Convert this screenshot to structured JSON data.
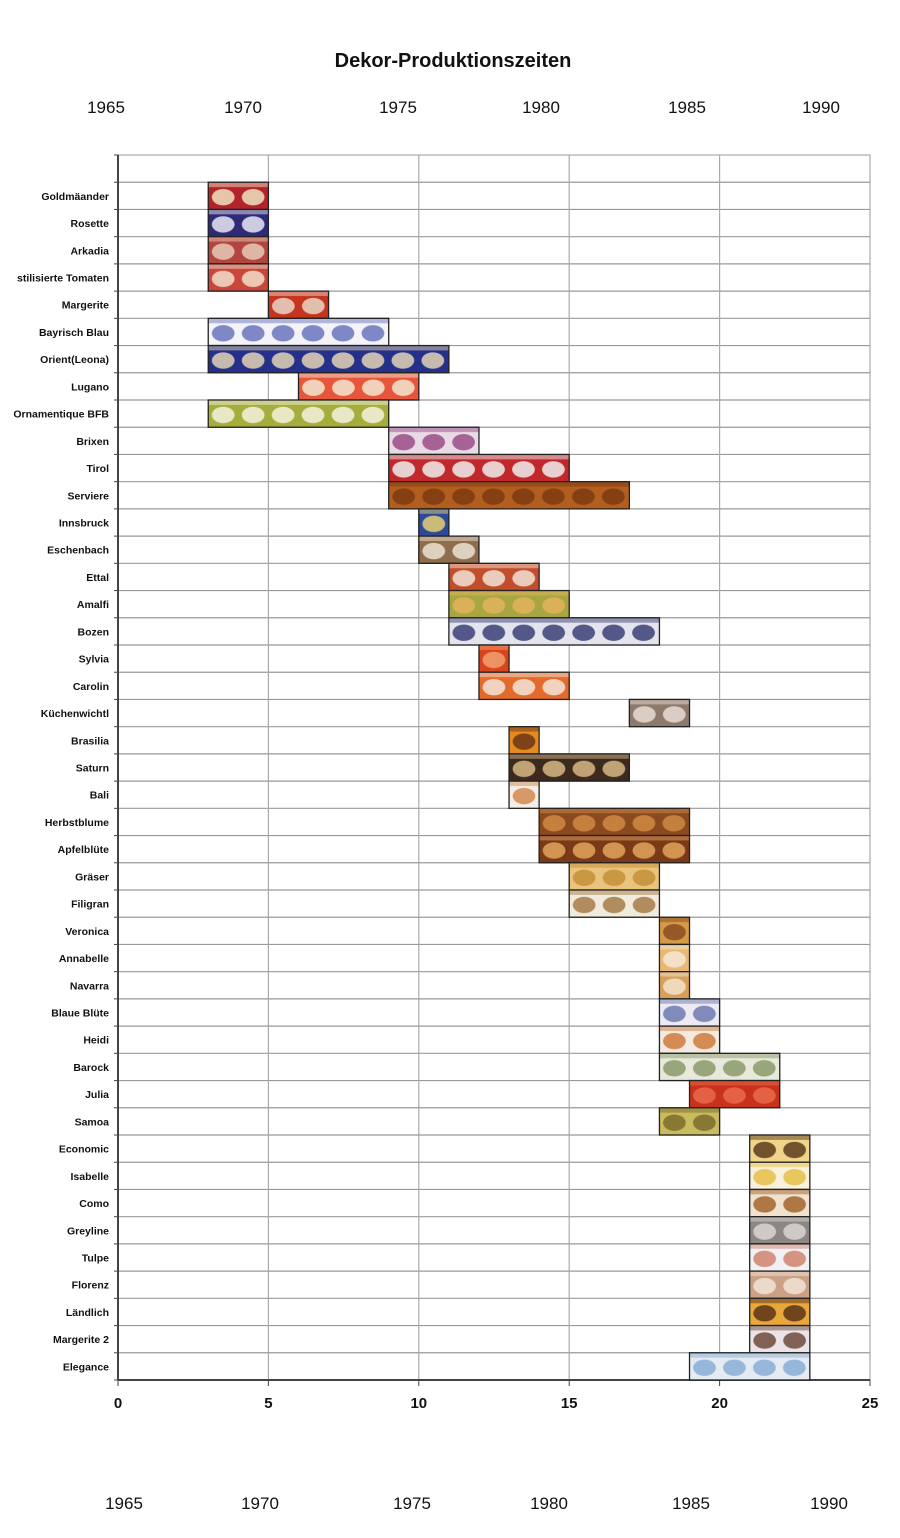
{
  "chart_data": {
    "type": "gantt",
    "title": "Dekor-Produktionszeiten",
    "top_year_labels": [
      "1965",
      "1970",
      "1975",
      "1980",
      "1985",
      "1990"
    ],
    "bottom_year_labels": [
      "1965",
      "1970",
      "1975",
      "1980",
      "1985",
      "1990"
    ],
    "xlim": [
      0,
      25
    ],
    "xticks": [
      0,
      5,
      10,
      15,
      20,
      25
    ],
    "grid": true,
    "tasks": [
      {
        "name": "Goldmäander",
        "start": 3,
        "end": 5,
        "colors": [
          "#b3232a",
          "#efe3c0"
        ]
      },
      {
        "name": "Rosette",
        "start": 3,
        "end": 5,
        "colors": [
          "#2e2a78",
          "#e8e8f4"
        ]
      },
      {
        "name": "Arkadia",
        "start": 3,
        "end": 5,
        "colors": [
          "#b2453f",
          "#e7c9b8"
        ]
      },
      {
        "name": "stilisierte Tomaten",
        "start": 3,
        "end": 5,
        "colors": [
          "#c8473a",
          "#f1ddc9"
        ]
      },
      {
        "name": "Margerite",
        "start": 5,
        "end": 7,
        "colors": [
          "#c5341f",
          "#e9d6c6"
        ]
      },
      {
        "name": "Bayrisch Blau",
        "start": 3,
        "end": 9,
        "colors": [
          "#f3f3f8",
          "#6b76bd"
        ]
      },
      {
        "name": "Orient(Leona)",
        "start": 3,
        "end": 11,
        "colors": [
          "#25308a",
          "#e2d4b4"
        ]
      },
      {
        "name": "Lugano",
        "start": 6,
        "end": 10,
        "colors": [
          "#e7553a",
          "#f4e6d0"
        ]
      },
      {
        "name": "Ornamentique BFB",
        "start": 3,
        "end": 9,
        "colors": [
          "#a5ae3c",
          "#f4f2df"
        ]
      },
      {
        "name": "Brixen",
        "start": 9,
        "end": 12,
        "colors": [
          "#e9dbe6",
          "#9a4c86"
        ]
      },
      {
        "name": "Tirol",
        "start": 9,
        "end": 15,
        "colors": [
          "#c0282b",
          "#f0eeee"
        ]
      },
      {
        "name": "Serviere",
        "start": 9,
        "end": 17,
        "colors": [
          "#b35d1e",
          "#7b3a12"
        ]
      },
      {
        "name": "Innsbruck",
        "start": 10,
        "end": 11,
        "colors": [
          "#2d4a9a",
          "#e7cf72"
        ]
      },
      {
        "name": "Eschenbach",
        "start": 10,
        "end": 12,
        "colors": [
          "#8e6d4c",
          "#ede3d2"
        ]
      },
      {
        "name": "Ettal",
        "start": 11,
        "end": 14,
        "colors": [
          "#c24d2a",
          "#f1e3d7"
        ]
      },
      {
        "name": "Amalfi",
        "start": 11,
        "end": 15,
        "colors": [
          "#a8a642",
          "#e3b35a"
        ]
      },
      {
        "name": "Bozen",
        "start": 11,
        "end": 18,
        "colors": [
          "#e4e4ec",
          "#3a3f78"
        ]
      },
      {
        "name": "Sylvia",
        "start": 12,
        "end": 13,
        "colors": [
          "#d8451d",
          "#f0a070"
        ]
      },
      {
        "name": "Carolin",
        "start": 12,
        "end": 15,
        "colors": [
          "#e36a2a",
          "#f2e4d8"
        ]
      },
      {
        "name": "Küchenwichtl",
        "start": 17,
        "end": 19,
        "colors": [
          "#8e7a6c",
          "#e6dcd6"
        ]
      },
      {
        "name": "Brasilia",
        "start": 13,
        "end": 14,
        "colors": [
          "#e48a1f",
          "#6c3518"
        ]
      },
      {
        "name": "Saturn",
        "start": 13,
        "end": 17,
        "colors": [
          "#3d2a1f",
          "#d7b883"
        ]
      },
      {
        "name": "Bali",
        "start": 13,
        "end": 14,
        "colors": [
          "#f3eee8",
          "#d58b50"
        ]
      },
      {
        "name": "Herbstblume",
        "start": 14,
        "end": 19,
        "colors": [
          "#8b4a1e",
          "#d08a44"
        ]
      },
      {
        "name": "Apfelblüte",
        "start": 14,
        "end": 19,
        "colors": [
          "#7a3a18",
          "#e3a25b"
        ]
      },
      {
        "name": "Gräser",
        "start": 15,
        "end": 18,
        "colors": [
          "#e8c47c",
          "#c58f38"
        ]
      },
      {
        "name": "Filigran",
        "start": 15,
        "end": 18,
        "colors": [
          "#f1ebdd",
          "#a57b49"
        ]
      },
      {
        "name": "Veronica",
        "start": 18,
        "end": 19,
        "colors": [
          "#d49a48",
          "#8a4d20"
        ]
      },
      {
        "name": "Annabelle",
        "start": 18,
        "end": 19,
        "colors": [
          "#e9b873",
          "#f5e8d6"
        ]
      },
      {
        "name": "Navarra",
        "start": 18,
        "end": 19,
        "colors": [
          "#d79f5a",
          "#f2e3cd"
        ]
      },
      {
        "name": "Blaue Blüte",
        "start": 18,
        "end": 20,
        "colors": [
          "#eceaf2",
          "#6f7ab0"
        ]
      },
      {
        "name": "Heidi",
        "start": 18,
        "end": 20,
        "colors": [
          "#f3ebe3",
          "#d07b3b"
        ]
      },
      {
        "name": "Barock",
        "start": 18,
        "end": 22,
        "colors": [
          "#e8e8dc",
          "#8a9b6a"
        ]
      },
      {
        "name": "Julia",
        "start": 19,
        "end": 22,
        "colors": [
          "#c7321c",
          "#ea6a4a"
        ]
      },
      {
        "name": "Samoa",
        "start": 18,
        "end": 20,
        "colors": [
          "#c9bb5e",
          "#7b6d2c"
        ]
      },
      {
        "name": "Economic",
        "start": 21,
        "end": 23,
        "colors": [
          "#f0d48a",
          "#5a3b1c"
        ]
      },
      {
        "name": "Isabelle",
        "start": 21,
        "end": 23,
        "colors": [
          "#f8f1dc",
          "#e8c048"
        ]
      },
      {
        "name": "Como",
        "start": 21,
        "end": 23,
        "colors": [
          "#efe3cf",
          "#a3642b"
        ]
      },
      {
        "name": "Greyline",
        "start": 21,
        "end": 23,
        "colors": [
          "#8d8682",
          "#d9d6d4"
        ]
      },
      {
        "name": "Tulpe",
        "start": 21,
        "end": 23,
        "colors": [
          "#f1f0f4",
          "#d0846e"
        ]
      },
      {
        "name": "Florenz",
        "start": 21,
        "end": 23,
        "colors": [
          "#caa184",
          "#f1e3d6"
        ]
      },
      {
        "name": "Ländlich",
        "start": 21,
        "end": 23,
        "colors": [
          "#e8a83a",
          "#5a3218"
        ]
      },
      {
        "name": "Margerite 2",
        "start": 21,
        "end": 23,
        "colors": [
          "#ebe3ea",
          "#6d4a3a"
        ]
      },
      {
        "name": "Elegance",
        "start": 19,
        "end": 23,
        "colors": [
          "#e6ebf1",
          "#89aed6"
        ]
      }
    ]
  }
}
